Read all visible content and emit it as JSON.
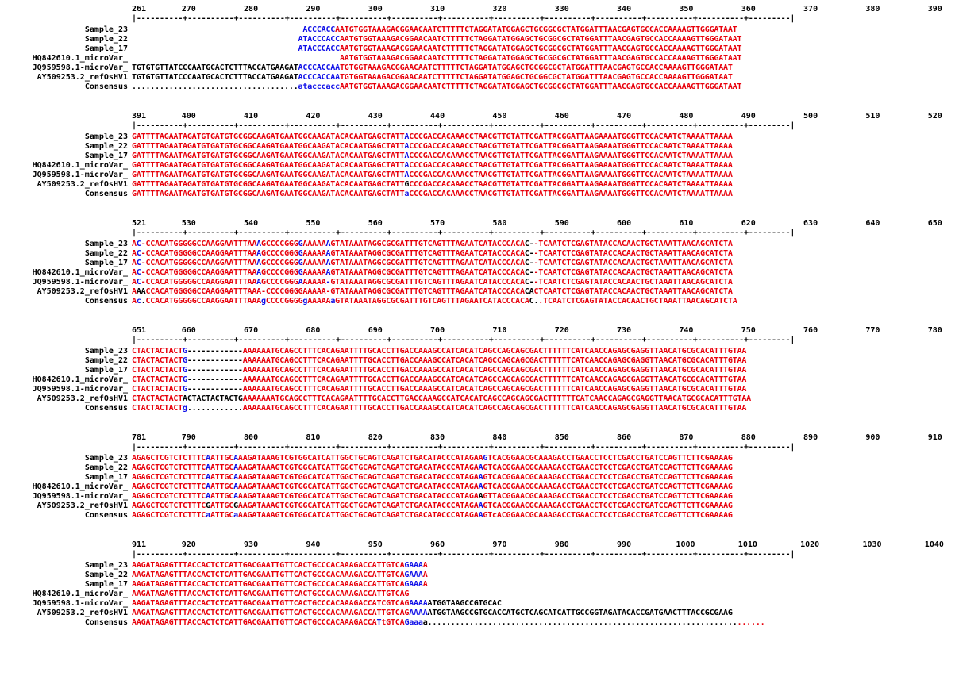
{
  "alignment": {
    "sequence_names": [
      "Sample_23",
      "Sample_22",
      "Sample_17",
      "HQ842610.1_microVar_",
      "JQ959598.1-microVar_",
      "AY509253.2_refOsHV1",
      "Consensus"
    ],
    "blocks": [
      {
        "start": 261,
        "end": 390,
        "ticks": [
          "261",
          "270",
          "280",
          "290",
          "300",
          "310",
          "320",
          "330",
          "340",
          "350",
          "360",
          "370",
          "380",
          "390"
        ],
        "ruler": "|----------+----------+----------+----------+----------+----------+----------+----------+----------+----------+----------+----------+---------|",
        "rows": [
          {
            "name": "Sample_23",
            "seq": "                                     ACCCACCAATGTGGTAAAGACGGAACAATCTTTTTCTAGGATATGGAGCTGCGGCGCTATGGATTTAACGAGTGCCACCAAAAGTTGGGATAAT",
            "colors": "                                     bbbbbbbrrrrrrrrrrrrrrrrrrrrrrrrrrrrrrrrrrrrrrrrrrrrrrrrrrrrrrrrrrrrrrrrrrrrrrrrrrrrrrrrrrrrrrrr"
          },
          {
            "name": "Sample_22",
            "seq": "                                    ATACCCACCAATGTGGTAAAGACGGAACAATCTTTTTCTAGGATATGGAGCTGCGGCGCTATGGATTTAACGAGTGCCACCAAAAGTTGGGATAAT",
            "colors": "                                    bbbbbbbbbrrrrrrrrrrrrrrrrrrrrrrrrrrrrrrrrrrrrrrrrrrrrrrrrrrrrrrrrrrrrrrrrrrrrrrrrrrrrrrrrrrrrrrr"
          },
          {
            "name": "Sample_17",
            "seq": "                                    ATACCCACCAATGTGGTAAAGACGGAACAATCTTTTTCTAGGATATGGAGCTGCGGCGCTATGGATTTAACGAGTGCCACCAAAAGTTGGGATAAT",
            "colors": "                                    bbbbbbbbbrrrrrrrrrrrrrrrrrrrrrrrrrrrrrrrrrrrrrrrrrrrrrrrrrrrrrrrrrrrrrrrrrrrrrrrrrrrrrrrrrrrrrrrr"
          },
          {
            "name": "HQ842610.1_microVar_",
            "seq": "                                             AATGTGGTAAAGACGGAACAATCTTTTTCTAGGATATGGAGCTGCGGCGCTATGGATTTAACGAGTGCCACCAAAAGTTGGGATAAT",
            "colors": "                                             rrrrrrrrrrrrrrrrrrrrrrrrrrrrrrrrrrrrrrrrrrrrrrrrrrrrrrrrrrrrrrrrrrrrrrrrrrrrrrrrrrrrr"
          },
          {
            "name": "JQ959598.1-microVar_",
            "seq": "TGTGTGTTATCCCAATGCACTCTTTACCATGAAGATACCCACCAATGTGGTAAAGACGGAACAATCTTTTTCTAGGATATGGAGCTGCGGCGCTATGGATTTAACGAGTGCCACCAAAAGTTGGGATAAT",
            "colors": "kkkkkkkkkkkkkkkkkkkkkkkkkkkkkkkkkkkkbbbbbbbbbrrrrrrrrrrrrrrrrrrrrrrrrrrrrrrrrrrrrrrrrrrrrrrrrrrrrrrrrrrrrrrrrrrrrrrrrrrrrrrrrrrrrrrrrrr"
          },
          {
            "name": "AY509253.2_refOsHV1",
            "seq": "TGTGTGTTATCCCAATGCACTCTTTACCATGAAGATACCCACCAATGTGGTAAAGACGGAACAATCTTTTTCTAGGATATGGAGCTGCGGCGCTATGGATTTAACGAGTGCCACCAAAAGTTGGGATAAT",
            "colors": "kkkkkkkkkkkkkkkkkkkkkkkkkkkkkkkkkkkkbbbbbbbbbrrrrrrrrrrrrrrrrrrrrrrrrrrrrrrrrrrrrrrrrrrrrrrrrrrrrrrrrrrrrrrrrrrrrrrrrrrrrrrrrrrrrrrr"
          },
          {
            "name": "Consensus",
            "seq": "....................................atacccaccAATGTGGTAAAGACGGAACAATCTTTTTCTAGGATATGGAGCTGCGGCGCTATGGATTTAACGAGTGCCACCAAAAGTTGGGATAAT",
            "colors": "kkkkkkkkkkkkkkkkkkkkkkkkkkkkkkkkkkkkbbbbbbbbbrrrrrrrrrrrrrrrrrrrrrrrrrrrrrrrrrrrrrrrrrrrrrrrrrrrrrrrrrrrrrrrrrrrrrrrrrrrrrrrrrrrrrrr"
          }
        ]
      },
      {
        "start": 391,
        "end": 520,
        "ticks": [
          "391",
          "400",
          "410",
          "420",
          "430",
          "440",
          "450",
          "460",
          "470",
          "480",
          "490",
          "500",
          "510",
          "520"
        ],
        "ruler": "|----------+----------+----------+----------+----------+----------+----------+----------+----------+----------+----------+----------+---------|",
        "rows": [
          {
            "name": "Sample_23",
            "seq": "GATTTTAGAATAGATGTGATGTGCGGCAAGATGAATGGCAAGATACACAATGAGCTATTACCCGACCACAAACCTAACGTTGTATTCGATTACGGATTAAGAAAATGGGTTCCACAATCTAAAATTAAAA",
            "colors": "rrrrrrrrrrrrrrrrrrrrrrrrrrrrrrrrrrrrrrrrrrrrrrrrrrrrrrrrrrrbrrrrrrrrrrrrrrrrrrrrrrrrrrrrrrrrrrrrrrrrrrrrrrrrrrrrrrrrrrrrrrrrrrrrrr"
          },
          {
            "name": "Sample_22",
            "seq": "GATTTTAGAATAGATGTGATGTGCGGCAAGATGAATGGCAAGATACACAATGAGCTATTACCCGACCACAAACCTAACGTTGTATTCGATTACGGATTAAGAAAATGGGTTCCACAATCTAAAATTAAAA",
            "colors": "rrrrrrrrrrrrrrrrrrrrrrrrrrrrrrrrrrrrrrrrrrrrrrrrrrrrrrrrrrrbrrrrrrrrrrrrrrrrrrrrrrrrrrrrrrrrrrrrrrrrrrrrrrrrrrrrrrrrrrrrrrrrrrrrrr"
          },
          {
            "name": "Sample_17",
            "seq": "GATTTTAGAATAGATGTGATGTGCGGCAAGATGAATGGCAAGATACACAATGAGCTATTACCCGACCACAAACCTAACGTTGTATTCGATTACGGATTAAGAAAATGGGTTCCACAATCTAAAATTAAAA",
            "colors": "rrrrrrrrrrrrrrrrrrrrrrrrrrrrrrrrrrrrrrrrrrrrrrrrrrrrrrrrrrrbrrrrrrrrrrrrrrrrrrrrrrrrrrrrrrrrrrrrrrrrrrrrrrrrrrrrrrrrrrrrrrrrrrrrrr"
          },
          {
            "name": "HQ842610.1_microVar_",
            "seq": "GATTTTAGAATAGATGTGATGTGCGGCAAGATGAATGGCAAGATACACAATGAGCTATTACCCGACCACAAACCTAACGTTGTATTCGATTACGGATTAAGAAAATGGGTTCCACAATCTAAAATTAAAA",
            "colors": "rrrrrrrrrrrrrrrrrrrrrrrrrrrrrrrrrrrrrrrrrrrrrrrrrrrrrrrrrrrbrrrrrrrrrrrrrrrrrrrrrrrrrrrrrrrrrrrrrrrrrrrrrrrrrrrrrrrrrrrrrrrrrrrrrr"
          },
          {
            "name": "JQ959598.1-microVar_",
            "seq": "GATTTTAGAATAGATGTGATGTGCGGCAAGATGAATGGCAAGATACACAATGAGCTATTACCCGACCACAAACCTAACGTTGTATTCGATTACGGATTAAGAAAATGGGTTCCACAATCTAAAATTAAAA",
            "colors": "rrrrrrrrrrrrrrrrrrrrrrrrrrrrrrrrrrrrrrrrrrrrrrrrrrrrrrrrrrrbrrrrrrrrrrrrrrrrrrrrrrrrrrrrrrrrrrrrrrrrrrrrrrrrrrrrrrrrrrrrrrrrrrrrrr"
          },
          {
            "name": "AY509253.2_refOsHV1",
            "seq": "GATTTTAGAATAGATGTGATGTGCGGCAAGATGAATGGCAAGATACACAATGAGCTATTGCCCGACCACAAACCTAACGTTGTATTCGATTACGGATTAAGAAAATGGGTTCCACAATCTAAAATTAAAA",
            "colors": "rrrrrrrrrrrrrrrrrrrrrrrrrrrrrrrrrrrrrrrrrrrrrrrrrrrrrrrrrrrkrrrrrrrrrrrrrrrrrrrrrrrrrrrrrrrrrrrrrrrrrrrrrrrrrrrrrrrrrrrrrrrrrrrrrr"
          },
          {
            "name": "Consensus",
            "seq": "GATTTTAGAATAGATGTGATGTGCGGCAAGATGAATGGCAAGATACACAATGAGCTATTaCCCGACCACAAACCTAACGTTGTATTCGATTACGGATTAAGAAAATGGGTTCCACAATCTAAAATTAAAA",
            "colors": "rrrrrrrrrrrrrrrrrrrrrrrrrrrrrrrrrrrrrrrrrrrrrrrrrrrrrrrrrrrbrrrrrrrrrrrrrrrrrrrrrrrrrrrrrrrrrrrrrrrrrrrrrrrrrrrrrrrrrrrrrrrrrrrrrr"
          }
        ]
      },
      {
        "start": 521,
        "end": 650,
        "ticks": [
          "521",
          "530",
          "540",
          "550",
          "560",
          "570",
          "580",
          "590",
          "600",
          "610",
          "620",
          "630",
          "640",
          "650"
        ],
        "ruler": "|----------+----------+----------+----------+----------+----------+----------+----------+----------+----------+----------+----------+---------|",
        "rows": [
          {
            "name": "Sample_23",
            "seq": "AC-CCACATGGGGGCCAAGGAATTTAAAGCCCCGGGGAAAAAAGTATAAATAGGCGCGATTTGTCAGTTTAGAATCATACCCACAC--TCAATCTCGAGTATACCACAACTGCTAAATTAACAGCATCTA",
            "colors": "rbrrrrrrrrrrrrrrrrrrrrrrrrrbrrrrrrrrbrrrrrbrrrrrrrrrrrrrrrrrrrrrrrrrrrrrrrrrrrrrrrrrrkkrrrrrrrrrrrrrrrrrrrrrrrrrrrrrrrrrrrrrrrrrrrrrr"
          },
          {
            "name": "Sample_22",
            "seq": "AC-CCACATGGGGGCCAAGGAATTTAAAGCCCCGGGGAAAAAAGTATAAATAGGCGCGATTTGTCAGTTTAGAATCATACCCACAC--TCAATCTCGAGTATACCACAACTGCTAAATTAACAGCATCTA",
            "colors": "rbrrrrrrrrrrrrrrrrrrrrrrrrrbrrrrrrrrbrrrrrbrrrrrrrrrrrrrrrrrrrrrrrrrrrrrrrrrrrrrrrrrrkkrrrrrrrrrrrrrrrrrrrrrrrrrrrrrrrrrrrrrrrrrrrrrr"
          },
          {
            "name": "Sample_17",
            "seq": "AC-CCACATGGGGGCCAAGGAATTTAAAGCCCCGGGGAAAAAAGTATAAATAGGCGCGATTTGTCAGTTTAGAATCATACCCACAC--TCAATCTCGAGTATACCACAACTGCTAAATTAACAGCATCTA",
            "colors": "rbrrrrrrrrrrrrrrrrrrrrrrrrrbrrrrrrrrbrrrrrbrrrrrrrrrrrrrrrrrrrrrrrrrrrrrrrrrrrrrrrrrrkkrrrrrrrrrrrrrrrrrrrrrrrrrrrrrrrrrrrrrrrrrrrrrr"
          },
          {
            "name": "HQ842610.1_microVar_",
            "seq": "AC-CCACATGGGGGCCAAGGAATTTAAAGCCCCGGGGAAAAAAGTATAAATAGGCGCGATTTGTCAGTTTAGAATCATACCCACAC--TCAATCTCGAGTATACCACAACTGCTAAATTAACAGCATCTA",
            "colors": "rbrrrrrrrrrrrrrrrrrrrrrrrrrbrrrrrrrrbrrrrrbrrrrrrrrrrrrrrrrrrrrrrrrrrrrrrrrrrrrrrrrrrkkrrrrrrrrrrrrrrrrrrrrrrrrrrrrrrrrrrrrrrrrrrrrrr"
          },
          {
            "name": "JQ959598.1-microVar_",
            "seq": "AC-CCACATGGGGGCCAAGGAATTTAAAGCCCCGGGAAAAAA-GTATAAATAGGCGCGATTTGTCAGTTTAGAATCATACCCACAC--TCAATCTCGAGTATACCACAACTGCTAAATTAACAGCATCTA",
            "colors": "rbrrrrrrrrrrrrrrrrrrrrrrrrrbrrrrrrrrbrrrrrbrrrrrrrrrrrrrrrrrrrrrrrrrrrrrrrrrrrrrrrrrrkkrrrrrrrrrrrrrrrrrrrrrrrrrrrrrrrrrrrrrrrrrrrrrr"
          },
          {
            "name": "AY509253.2_refOsHV1",
            "seq": "AAACCACATGGGGGCCAAGGAATTTAAA-CCCCGGGGAAAAA-GTATAAATAGGCGCGATTTGTCAGTTTAGAATCATACCCACACACTCAATCTCGAGTATACCACAACTGCTAAATTAACAGCATCTA",
            "colors": "rkkrrrrrrrrrrrrrrrrrrrrrrrrrrrrrrrrrrrrrrrrrrrrrrrrrrrrrrrrrrrrrrrrrrrrrrrrrrrrrrrrrrkkrrrrrrrrrrrrrrrrrrrrrrrrrrrrrrrrrrrrrrrrrrrrrr"
          },
          {
            "name": "Consensus",
            "seq": "Ac.CCACATGGGGGCCAAGGAATTTAAAgCCCCGGGGgAAAAAaGTATAAATAGGCGCGATTTGTCAGTTTAGAATCATACCCACAC..TCAATCTCGAGTATACCACAACTGCTAAATTAACAGCATCTA",
            "colors": "rbkrrrrrrrrrrrrrrrrrrrrrrrrrbrrrrrrrrbrrrrrbrrrrrrrrrrrrrrrrrrrrrrrrrrrrrrrrrrrrrrrrrrkkrrrrrrrrrrrrrrrrrrrrrrrrrrrrrrrrrrrrrrrrrrrrrr"
          }
        ]
      },
      {
        "start": 651,
        "end": 780,
        "ticks": [
          "651",
          "660",
          "670",
          "680",
          "690",
          "700",
          "710",
          "720",
          "730",
          "740",
          "750",
          "760",
          "770",
          "780"
        ],
        "ruler": "|----------+----------+----------+----------+----------+----------+----------+----------+----------+----------+----------+----------+---------|",
        "rows": [
          {
            "name": "Sample_23",
            "seq": "CTACTACTACTG------------AAAAAATGCAGCCTTTCACAGAATTTTGCACCTTGACCAAAGCCATCACATCAGCCAGCAGCGACTTTTTTCATCAACCAGAGCGAGGTTAACATGCGCACATTTGTAA",
            "colors": "rrrrrrrrrrrbkkkkkkkkkkkkrrrrrrrrrrrrrrrrrrrrrrrrrrrrrrrrrrrrrrrrrrrrrrrrrrrrrrrrrrrrrrrrrrrrrrrrrrrrrrrrrrrrrrrrrrrrrrrrrrrrrrrrrr"
          },
          {
            "name": "Sample_22",
            "seq": "CTACTACTACTG------------AAAAAATGCAGCCTTTCACAGAATTTTGCACCTTGACCAAAGCCATCACATCAGCCAGCAGCGACTTTTTTCATCAACCAGAGCGAGGTTAACATGCGCACATTTGTAA",
            "colors": "rrrrrrrrrrrbkkkkkkkkkkkkrrrrrrrrrrrrrrrrrrrrrrrrrrrrrrrrrrrrrrrrrrrrrrrrrrrrrrrrrrrrrrrrrrrrrrrrrrrrrrrrrrrrrrrrrrrrrrrrrrrrrrrrrr"
          },
          {
            "name": "Sample_17",
            "seq": "CTACTACTACTG------------AAAAAATGCAGCCTTTCACAGAATTTTGCACCTTGACCAAAGCCATCACATCAGCCAGCAGCGACTTTTTTCATCAACCAGAGCGAGGTTAACATGCGCACATTTGTAA",
            "colors": "rrrrrrrrrrrbkkkkkkkkkkkkrrrrrrrrrrrrrrrrrrrrrrrrrrrrrrrrrrrrrrrrrrrrrrrrrrrrrrrrrrrrrrrrrrrrrrrrrrrrrrrrrrrrrrrrrrrrrrrrrrrrrrrrrr"
          },
          {
            "name": "HQ842610.1_microVar_",
            "seq": "CTACTACTACTG------------AAAAAATGCAGCCTTTCACAGAATTTTGCACCTTGACCAAAGCCATCACATCAGCCAGCAGCGACTTTTTTCATCAACCAGAGCGAGGTTAACATGCGCACATTTGTAA",
            "colors": "rrrrrrrrrrrbkkkkkkkkkkkkrrrrrrrrrrrrrrrrrrrrrrrrrrrrrrrrrrrrrrrrrrrrrrrrrrrrrrrrrrrrrrrrrrrrrrrrrrrrrrrrrrrrrrrrrrrrrrrrrrrrrrrrrr"
          },
          {
            "name": "JQ959598.1-microVar_",
            "seq": "CTACTACTACTG------------AAAAAATGCAGCCTTTCACAGAATTTTGCACCTTGACCAAAGCCATCACATCAGCCAGCAGCGACTTTTTTCATCAACCAGAGCGAGGTTAACATGCGCACATTTGTAA",
            "colors": "rrrrrrrrrrrbkkkkkkkkkkkkrrrrrrrrrrrrrrrrrrrrrrrrrrrrrrrrrrrrrrrrrrrrrrrrrrrrrrrrrrrrrrrrrrrrrrrrrrrrrrrrrrrrrrrrrrrrrrrrrrrrrrrrrr"
          },
          {
            "name": "AY509253.2_refOsHV1",
            "seq": "CTACTACTACTACTACTACTACTGAAAAAAATGCAGCCTTTCACAGAATTTTGCACCTTGACCAAAGCCATCACATCAGCCAGCAGCGACTTTTTTCATCAACCAGAGCGAGGTTAACATGCGCACATTTGTAA",
            "colors": "rrrrrrrrrrrkkkkkkkkkkkkkrrrrrrrrrrrrrrrrrrrrrrrrrrrrrrrrrrrrrrrrrrrrrrrrrrrrrrrrrrrrrrrrrrrrrrrrrrrrrrrrrrrrrrrrrrrrrrrrrrrrrrrrrr"
          },
          {
            "name": "Consensus",
            "seq": "CTACTACTACTg............AAAAAATGCAGCCTTTCACAGAATTTTGCACCTTGACCAAAGCCATCACATCAGCCAGCAGCGACTTTTTTCATCAACCAGAGCGAGGTTAACATGCGCACATTTGTAA",
            "colors": "rrrrrrrrrrrbkkkkkkkkkkkkrrrrrrrrrrrrrrrrrrrrrrrrrrrrrrrrrrrrrrrrrrrrrrrrrrrrrrrrrrrrrrrrrrrrrrrrrrrrrrrrrrrrrrrrrrrrrrrrrrrrrrrrrr"
          }
        ]
      },
      {
        "start": 781,
        "end": 910,
        "ticks": [
          "781",
          "790",
          "800",
          "810",
          "820",
          "830",
          "840",
          "850",
          "860",
          "870",
          "880",
          "890",
          "900",
          "910"
        ],
        "ruler": "|----------+----------+----------+----------+----------+----------+----------+----------+----------+----------+----------+----------+---------|",
        "rows": [
          {
            "name": "Sample_23",
            "seq": "AGAGCTCGTCTCTTTCAATTGCAAAGATAAAGTCGTGGCATCATTGGCTGCAGTCAGATCTGACATACCCATAGAAGTCACGGAACGCAAAGACCTGAACCTCCTCGACCTGATCCAGTTCTTCGAAAAG",
            "colors": "rrrrrrrrrrrrrrrrbrrrrrbrrrrrrrrrrrrrrrrrrrrrrrrrrrrrrrrrrrrrrrrrrrrrrrrrrrrrbrrrrrrrrrrrrrrrrrrrrrrrrrrrrrrrrrrrrrrrrrrrrrrrrrrrrrrr"
          },
          {
            "name": "Sample_22",
            "seq": "AGAGCTCGTCTCTTTCAATTGCAAAGATAAAGTCGTGGCATCATTGGCTGCAGTCAGATCTGACATACCCATAGAAGTCACGGAACGCAAAGACCTGAACCTCCTCGACCTGATCCAGTTCTTCGAAAAG",
            "colors": "rrrrrrrrrrrrrrrrbrrrrrbrrrrrrrrrrrrrrrrrrrrrrrrrrrrrrrrrrrrrrrrrrrrrrrrrrrrbrrrrrrrrrrrrrrrrrrrrrrrrrrrrrrrrrrrrrrrrrrrrrrrrrrrrrrr"
          },
          {
            "name": "Sample_17",
            "seq": "AGAGCTCGTCTCTTTCAATTGCAAAGATAAAGTCGTGGCATCATTGGCTGCAGTCAGATCTGACATACCCATAGAAGTCACGGAACGCAAAGACCTGAACCTCCTCGACCTGATCCAGTTCTTCGAAAAG",
            "colors": "rrrrrrrrrrrrrrrrbrrrrrbrrrrrrrrrrrrrrrrrrrrrrrrrrrrrrrrrrrrrrrrrrrrrrrrrrrrbrrrrrrrrrrrrrrrrrrrrrrrrrrrrrrrrrrrrrrrrrrrrrrrrrrrrrrr"
          },
          {
            "name": "HQ842610.1_microVar_",
            "seq": "AGAGCTCGTCTCTTTCAATTGCAAAGATAAAGTCGTGGCATCATTGGCTGCAGTCAGATCTGACATACCCATAGAAGTCACGGAACGCAAAGACCTGAACCTCCTCGACCTGATCCAGTTCTTCGAAAAG",
            "colors": "rrrrrrrrrrrrrrrrbrrrrrbrrrrrrrrrrrrrrrrrrrrrrrrrrrrrrrrrrrrrrrrrrrrrrrrrrrrbrrrrrrrrrrrrrrrrrrrrrrrrrrrrrrrrrrrrrrrrrrrrrrrrrrrrrrr"
          },
          {
            "name": "JQ959598.1-microVar_",
            "seq": "AGAGCTCGTCTCTTTCAATTGCAAAGATAAAGTCGTGGCATCATTGGCTGCAGTCAGATCTGACATACCCATAGAAGTTACGGAACGCAAAGACCTGAACCTCCTCGACCTGATCCAGTTCTTCGAAAAG",
            "colors": "rrrrrrrrrrrrrrrrbrrrrrbrrrrrrrrrrrrrrrrrrrrrrrrrrrrrrrrrrrrrrrrrrrrrrrrrrrrkrrrrrrrrrrrrrrrrrrrrrrrrrrrrrrrrrrrrrrrrrrrrrrrrrrrrrrrr"
          },
          {
            "name": "AY509253.2_refOsHV1",
            "seq": "AGAGCTCGTCTCTTTCGATTGCGAAGATAAAGTCGTGGCATCATTGGCTGCAGTCAGATCTGACATACCCATAGAAGTCACGGAACGCAAAGACCTGAACCTCCTCGACCTGATCCAGTTCTTCGAAAAG",
            "colors": "rrrrrrrrrrrrrrrrkrrrrrkrrrrrrrrrrrrrrrrrrrrrrrrrrrrrrrrrrrrrrrrrrrrrrrrrrrrbrrrrrrrrrrrrrrrrrrrrrrrrrrrrrrrrrrrrrrrrrrrrrrrrrrrrrrr"
          },
          {
            "name": "Consensus",
            "seq": "AGAGCTCGTCTCTTTCaATTGCaAAGATAAAGTCGTGGCATCATTGGCTGCAGTCAGATCTGACATACCCATAGAAGTcACGGAACGCAAAGACCTGAACCTCCTCGACCTGATCCAGTTCTTCGAAAAG",
            "colors": "rrrrrrrrrrrrrrrrbrrrrrbrrrrrrrrrrrrrrrrrrrrrrrrrrrrrrrrrrrrrrrrrrrrrrrrrrrrbrrrrrrrrrrrrrrrrrrrrrrrrrrrrrrrrrrrrrrrrrrrrrrrrrrrrrrr"
          }
        ]
      },
      {
        "start": 911,
        "end": 1040,
        "ticks": [
          "911",
          "920",
          "930",
          "940",
          "950",
          "960",
          "970",
          "980",
          "990",
          "1000",
          "1010",
          "1020",
          "1030",
          "1040"
        ],
        "ruler": "|----------+----------+----------+----------+----------+----------+----------+----------+----------+----------+----------+----------+---------|",
        "rows": [
          {
            "name": "Sample_23",
            "seq": "AAGATAGAGTTTACCACTCTCATTGACGAATTGTTCACTGCCCACAAAGACCATTGTCAGAAAA",
            "colors": "rrrrrrrrrrrrrrrrrrrrrrrrrrrrrrrrrrrrrrrrrrrrrrrrrrrrrrrrrrrbbbb"
          },
          {
            "name": "Sample_22",
            "seq": "AAGATAGAGTTTACCACTCTCATTGACGAATTGTTCACTGCCCACAAAGACCATTGTCAGAAAA",
            "colors": "rrrrrrrrrrrrrrrrrrrrrrrrrrrrrrrrrrrrrrrrrrrrrrrrrrrrrrrrrrrbbbb"
          },
          {
            "name": "Sample_17",
            "seq": "AAGATAGAGTTTACCACTCTCATTGACGAATTGTTCACTGCCCACAAAGACCATTGTCAGAAAA",
            "colors": "rrrrrrrrrrrrrrrrrrrrrrrrrrrrrrrrrrrrrrrrrrrrrrrrrrrrrrrrrrrbbbb"
          },
          {
            "name": "HQ842610.1_microVar_",
            "seq": "AAGATAGAGTTTACCACTCTCATTGACGAATTGTTCACTGCCCACAAAGACCATTGTCAG",
            "colors": "rrrrrrrrrrrrrrrrrrrrrrrrrrrrrrrrrrrrrrrrrrrrrrrrrrrrrrrrrrrr"
          },
          {
            "name": "JQ959598.1-microVar_",
            "seq": "AAGATAGAGTTTACCACTCTCATTGACGAATTGTTCACTGCCCACAAAGACCATCGTCAGAAAAATGGTAAGCCGTGCAC",
            "colors": "rrrrrrrrrrrrrrrrrrrrrrrrrrrrrrrrrrrrrrrrrrrrrrrrrrrrrrrrrrrrbbbbkkkkkkkkkkkkkkkk"
          },
          {
            "name": "AY509253.2_refOsHV1",
            "seq": "AAGATAGAGTTTACCACTCTCATTGACGAATTGTTCACTGCCCACAAAGACCATTGTCAGAAAAATGGTAAGCCGTGCACCATGCTCAGCATCATTGCCGGTAGATACACCGATGAACTTTACCGCGAAG",
            "colors": "rrrrrrrrrrrrrrrrrrrrrrrrrrrrrrrrrrrrrrrrrrrrrrrrrrrrrrrrrrrrbbbbkkkkkkkkkkkkkkkkkkkkkkkkkkkkkkkkkkkkkkkkkkkkkkkkkkkkkkkkkkkkkkkkkkk"
          },
          {
            "name": "Consensus",
            "seq": "AAGATAGAGTTTACCACTCTCATTGACGAATTGTTCACTGCCCACAAAGACCATtGTCAGaaaa.........................................................................",
            "colors": "rrrrrrrrrrrrrrrrrrrrrrrrrrrrrrrrrrrrrrrrrrrrrrrrrrrrrbrrrrrbbbbkkkkkkkkkkkkkkkkkkkkkkkkkkkkkkkkkkkkkkkkkkkkkkkkkkkkkkkkkkkkkkkkkkkk"
          }
        ]
      }
    ],
    "colors": {
      "red": "#e8000b",
      "blue": "#1010e8",
      "black": "#000000"
    }
  }
}
